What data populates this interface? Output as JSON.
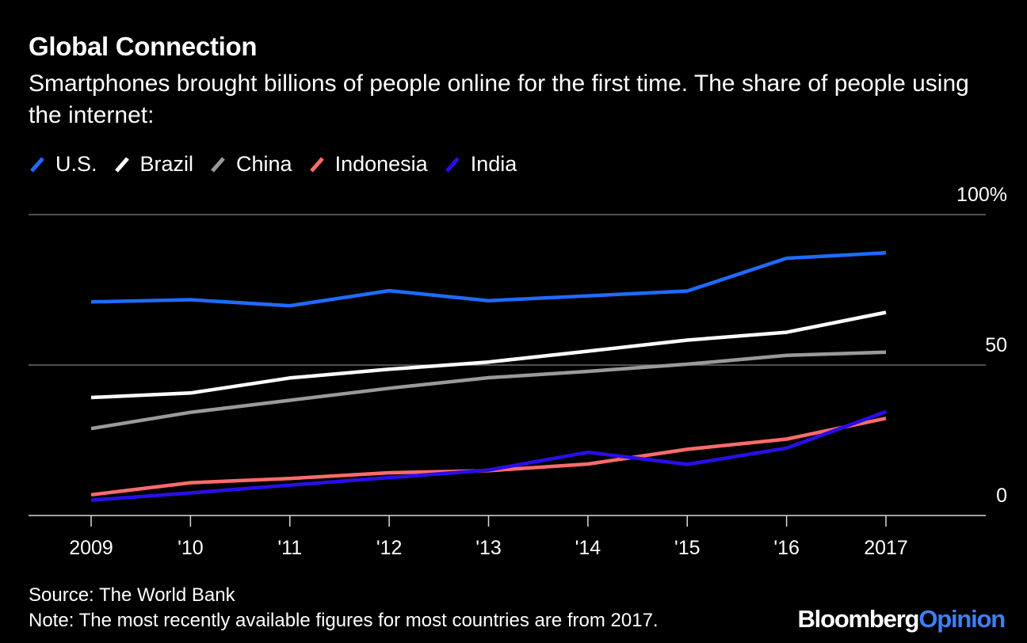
{
  "header": {
    "title": "Global Connection",
    "subtitle": "Smartphones brought billions of people online for the first time. The share of people using the internet:"
  },
  "footer": {
    "source": "Source: The World Bank",
    "note": "Note: The most recently available figures for most countries are from 2017."
  },
  "brand": {
    "part1": "Bloomberg",
    "part2": "Opinion"
  },
  "chart_data": {
    "type": "line",
    "title": "Global Connection",
    "subtitle": "Smartphones brought billions of people online for the first time. The share of people using the internet:",
    "x": [
      2009,
      2010,
      2011,
      2012,
      2013,
      2014,
      2015,
      2016,
      2017
    ],
    "x_tick_labels": [
      "2009",
      "'10",
      "'11",
      "'12",
      "'13",
      "'14",
      "'15",
      "'16",
      "2017"
    ],
    "y_tick_values": [
      0,
      50,
      100
    ],
    "y_tick_labels": [
      "0",
      "50",
      "100%"
    ],
    "ylim": [
      0,
      100
    ],
    "grid": true,
    "legend_position": "top-left",
    "series": [
      {
        "name": "U.S.",
        "color": "#1f6bff",
        "values": [
          71,
          71.7,
          69.7,
          74.7,
          71.4,
          73,
          74.6,
          85.5,
          87.3
        ]
      },
      {
        "name": "Brazil",
        "color": "#ffffff",
        "values": [
          39.2,
          40.7,
          45.7,
          48.6,
          51,
          54.6,
          58.3,
          60.9,
          67.5
        ]
      },
      {
        "name": "China",
        "color": "#9a9a9a",
        "values": [
          28.9,
          34.3,
          38.3,
          42.3,
          45.8,
          47.9,
          50.3,
          53.2,
          54.3
        ]
      },
      {
        "name": "Indonesia",
        "color": "#ff6b6b",
        "values": [
          6.9,
          10.9,
          12.3,
          14.2,
          14.9,
          17.1,
          22,
          25.4,
          32.3
        ]
      },
      {
        "name": "India",
        "color": "#2a0ee8",
        "values": [
          5.1,
          7.5,
          10.1,
          12.6,
          15.1,
          21,
          17,
          22.4,
          34.5
        ]
      }
    ]
  }
}
